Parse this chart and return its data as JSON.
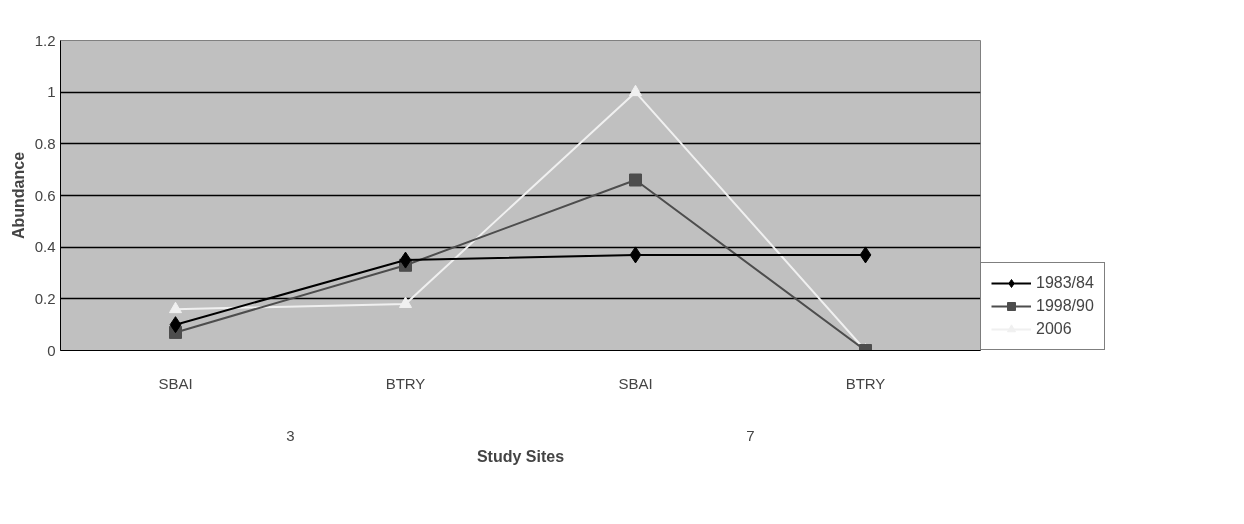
{
  "chart_data": {
    "type": "line",
    "xlabel": "Study Sites",
    "ylabel": "Abundance",
    "categories": [
      "SBAI",
      "BTRY",
      "SBAI",
      "BTRY"
    ],
    "annotations": [
      "3",
      "7"
    ],
    "ylim": [
      0,
      1.2
    ],
    "yticks": [
      0,
      0.2,
      0.4,
      0.6,
      0.8,
      1,
      1.2
    ],
    "grid": "y",
    "legend": "bottom right",
    "series": [
      {
        "name": "1983/84",
        "color": "#000000",
        "marker": "diamond",
        "values": [
          0.1,
          0.35,
          0.37,
          0.37
        ]
      },
      {
        "name": "1998/90",
        "color": "#4d4d4d",
        "marker": "square",
        "values": [
          0.07,
          0.33,
          0.66,
          0.0
        ]
      },
      {
        "name": "2006",
        "color": "#f0f0f0",
        "marker": "triangle",
        "values": [
          0.16,
          0.18,
          1.0,
          0.0
        ]
      }
    ]
  }
}
